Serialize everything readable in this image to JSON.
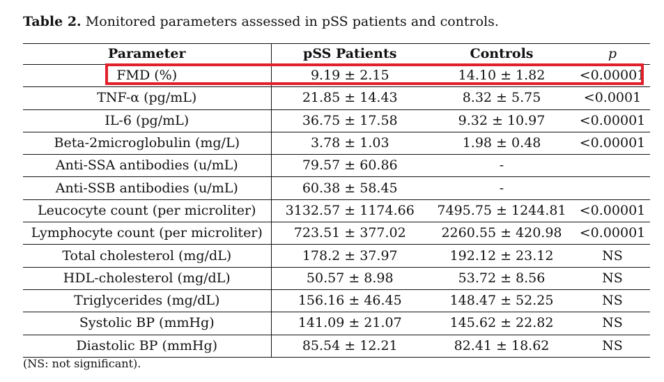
{
  "caption": {
    "label": "Table 2.",
    "text": "Monitored parameters assessed in pSS patients and controls."
  },
  "table": {
    "headers": {
      "parameter": "Parameter",
      "patients": "pSS Patients",
      "controls": "Controls",
      "p": "p"
    },
    "rows": [
      {
        "parameter": "FMD (%)",
        "patients": "9.19 ± 2.15",
        "controls": "14.10 ± 1.82",
        "p": "<0.00001"
      },
      {
        "parameter": "TNF-α (pg/mL)",
        "patients": "21.85 ± 14.43",
        "controls": "8.32 ± 5.75",
        "p": "<0.0001"
      },
      {
        "parameter": "IL-6 (pg/mL)",
        "patients": "36.75 ± 17.58",
        "controls": "9.32 ± 10.97",
        "p": "<0.00001"
      },
      {
        "parameter": "Beta-2microglobulin (mg/L)",
        "patients": "3.78 ± 1.03",
        "controls": "1.98 ± 0.48",
        "p": "<0.00001"
      },
      {
        "parameter": "Anti-SSA antibodies (u/mL)",
        "patients": "79.57 ± 60.86",
        "controls": "-",
        "p": ""
      },
      {
        "parameter": "Anti-SSB antibodies (u/mL)",
        "patients": "60.38 ± 58.45",
        "controls": "-",
        "p": ""
      },
      {
        "parameter": "Leucocyte count (per microliter)",
        "patients": "3132.57 ± 1174.66",
        "controls": "7495.75 ± 1244.81",
        "p": "<0.00001"
      },
      {
        "parameter": "Lymphocyte count (per microliter)",
        "patients": "723.51 ± 377.02",
        "controls": "2260.55 ± 420.98",
        "p": "<0.00001"
      },
      {
        "parameter": "Total cholesterol (mg/dL)",
        "patients": "178.2 ± 37.97",
        "controls": "192.12 ± 23.12",
        "p": "NS"
      },
      {
        "parameter": "HDL-cholesterol (mg/dL)",
        "patients": "50.57 ± 8.98",
        "controls": "53.72 ± 8.56",
        "p": "NS"
      },
      {
        "parameter": "Triglycerides (mg/dL)",
        "patients": "156.16 ± 46.45",
        "controls": "148.47 ± 52.25",
        "p": "NS"
      },
      {
        "parameter": "Systolic BP (mmHg)",
        "patients": "141.09 ± 21.07",
        "controls": "145.62 ± 22.82",
        "p": "NS"
      },
      {
        "parameter": "Diastolic BP (mmHg)",
        "patients": "85.54 ± 12.21",
        "controls": "82.41 ± 18.62",
        "p": "NS"
      }
    ]
  },
  "highlight": {
    "color": "#e0202a",
    "row": "FMD (%)"
  },
  "footnote": "(NS: not significant)."
}
